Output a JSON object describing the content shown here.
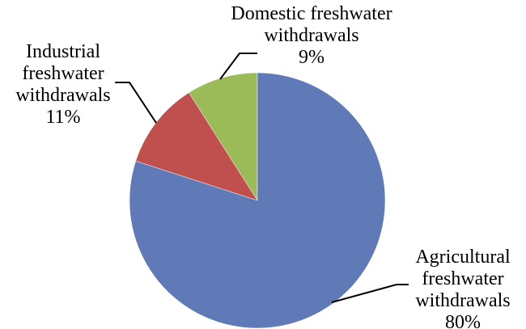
{
  "chart_data": {
    "type": "pie",
    "title": "",
    "slices": [
      {
        "name_lines": [
          "Domestic freshwater",
          "withdrawals"
        ],
        "value": 9,
        "value_label": "9%",
        "color": "#9bbb59"
      },
      {
        "name_lines": [
          "Industrial",
          "freshwater",
          "withdrawals"
        ],
        "value": 11,
        "value_label": "11%",
        "color": "#c0504d"
      },
      {
        "name_lines": [
          "Agricultural",
          "freshwater",
          "withdrawals"
        ],
        "value": 80,
        "value_label": "80%",
        "color": "#6079b7"
      }
    ],
    "legend": "none",
    "data_labels": "outside-with-leader-lines"
  }
}
